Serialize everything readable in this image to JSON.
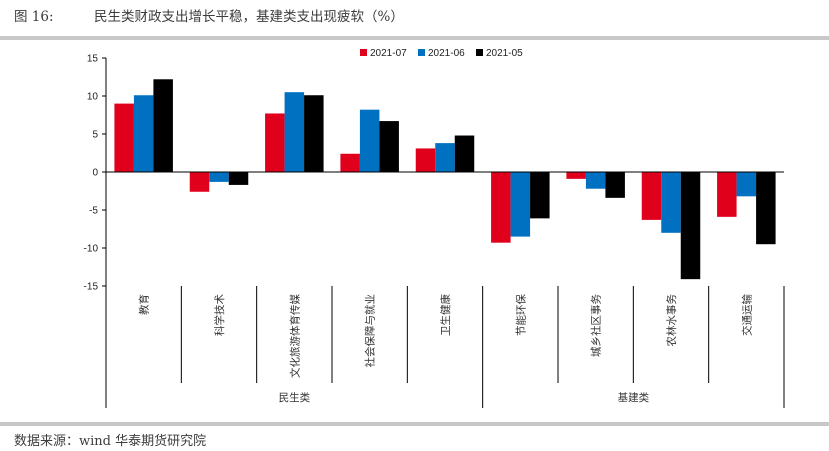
{
  "figure": {
    "number": "图 16:",
    "title": "民生类财政支出增长平稳，基建类支出现疲软（%）"
  },
  "source": "数据来源：wind 华泰期货研究院",
  "chart_data": {
    "type": "bar",
    "title": "民生类财政支出增长平稳，基建类支出现疲软（%）",
    "ylabel": "%",
    "ylim": [
      -15,
      15
    ],
    "yticks": [
      15,
      10,
      5,
      0,
      -5,
      -10,
      -15
    ],
    "categories": [
      "教育",
      "科学技术",
      "文化旅游体育传媒",
      "社会保障与就业",
      "卫生健康",
      "节能环保",
      "城乡社区事务",
      "农林水事务",
      "交通运输"
    ],
    "groups": [
      {
        "label": "民生类",
        "count": 5
      },
      {
        "label": "基建类",
        "count": 4
      }
    ],
    "legend_position": "top-center",
    "series": [
      {
        "name": "2021-07",
        "color": "#e0001b",
        "values": [
          9.0,
          -2.6,
          7.7,
          2.4,
          3.1,
          -9.3,
          -0.9,
          -6.3,
          -5.9
        ]
      },
      {
        "name": "2021-06",
        "color": "#0070c0",
        "values": [
          10.1,
          -1.3,
          10.5,
          8.2,
          3.8,
          -8.5,
          -2.2,
          -8.0,
          -3.2
        ]
      },
      {
        "name": "2021-05",
        "color": "#000000",
        "values": [
          12.2,
          -1.7,
          10.1,
          6.7,
          4.8,
          -6.1,
          -3.4,
          -14.1,
          -9.5
        ]
      }
    ]
  }
}
